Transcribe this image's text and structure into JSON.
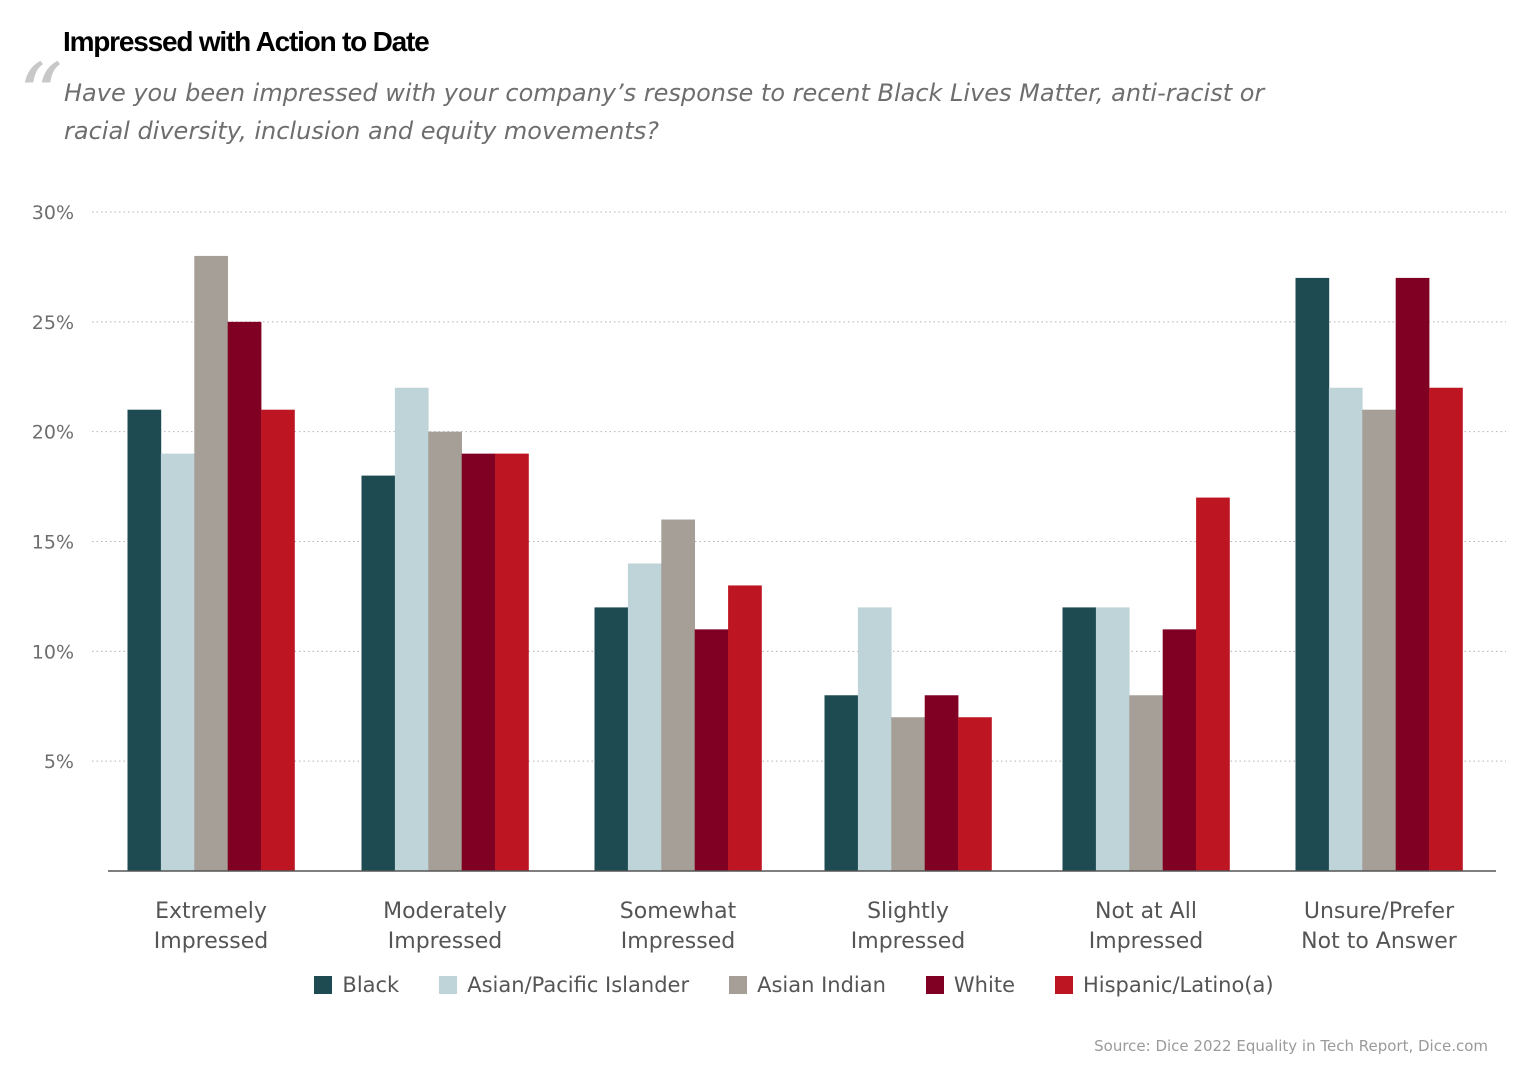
{
  "chart_data": {
    "type": "bar",
    "title": "Impressed with Action to Date",
    "subtitle": "Have you been impressed with your company’s response to recent Black Lives Matter, anti-racist or racial diversity, inclusion and equity movements?",
    "categories": [
      [
        "Extremely",
        "Impressed"
      ],
      [
        "Moderately",
        "Impressed"
      ],
      [
        "Somewhat",
        "Impressed"
      ],
      [
        "Slightly",
        "Impressed"
      ],
      [
        "Not at All",
        "Impressed"
      ],
      [
        "Unsure/Prefer",
        "Not to Answer"
      ]
    ],
    "series": [
      {
        "name": "Black",
        "color": "#1e4a52",
        "values": [
          21,
          18,
          12,
          8,
          12,
          27
        ]
      },
      {
        "name": "Asian/Pacific Islander",
        "color": "#bfd4d8",
        "values": [
          19,
          22,
          14,
          12,
          12,
          22
        ]
      },
      {
        "name": "Asian Indian",
        "color": "#a59f97",
        "values": [
          28,
          20,
          16,
          7,
          8,
          21
        ]
      },
      {
        "name": "White",
        "color": "#800024",
        "values": [
          25,
          19,
          11,
          8,
          11,
          27
        ]
      },
      {
        "name": "Hispanic/Latino(a)",
        "color": "#bd1522",
        "values": [
          21,
          19,
          13,
          7,
          17,
          22
        ]
      }
    ],
    "yticks": [
      "5%",
      "10%",
      "15%",
      "20%",
      "25%",
      "30%"
    ],
    "ytick_values": [
      5,
      10,
      15,
      20,
      25,
      30
    ],
    "ylim": [
      0,
      30
    ],
    "xlabel": "",
    "ylabel": "",
    "grid": true,
    "legend_position": "bottom-center"
  },
  "source": "Source: Dice 2022 Equality in Tech Report, Dice.com"
}
